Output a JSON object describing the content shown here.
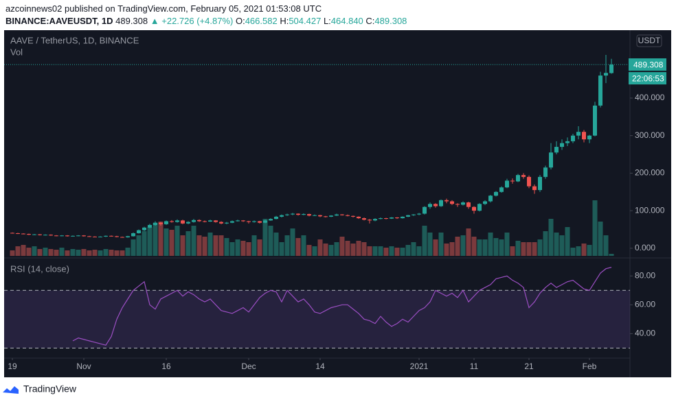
{
  "header": {
    "publisher": "azcoinnews02 published on TradingView.com, February 05, 2021 01:53:08 UTC",
    "symbol": "BINANCE:AAVEUSDT, 1D",
    "last": "489.308",
    "arrow": "▲",
    "change": "+22.726 (+4.87%)",
    "open_label": "O:",
    "open": "466.582",
    "high_label": "H:",
    "high": "504.427",
    "low_label": "L:",
    "low": "464.840",
    "close_label": "C:",
    "close": "489.308"
  },
  "footer": {
    "brand": "TradingView"
  },
  "chart_data": [
    {
      "type": "candlestick",
      "title": "AAVE / TetherUS, 1D, BINANCE",
      "currency": "USDT",
      "categories": [
        "19",
        null,
        null,
        null,
        null,
        null,
        null,
        null,
        null,
        null,
        null,
        null,
        null,
        "Nov",
        null,
        null,
        null,
        null,
        null,
        null,
        null,
        null,
        null,
        null,
        null,
        null,
        null,
        null,
        "16",
        null,
        null,
        null,
        null,
        null,
        null,
        null,
        null,
        null,
        null,
        null,
        null,
        null,
        null,
        "Dec",
        null,
        null,
        null,
        null,
        null,
        null,
        null,
        null,
        null,
        null,
        null,
        null,
        "14",
        null,
        null,
        null,
        null,
        null,
        null,
        null,
        null,
        null,
        null,
        null,
        null,
        null,
        null,
        null,
        null,
        null,
        "2021",
        null,
        null,
        null,
        null,
        null,
        null,
        null,
        null,
        null,
        "11",
        null,
        null,
        null,
        null,
        null,
        null,
        null,
        null,
        null,
        "21",
        null,
        null,
        null,
        null,
        null,
        null,
        null,
        null,
        null,
        null,
        "Feb",
        null,
        null,
        null,
        null
      ],
      "ohlc": [
        [
          41,
          42,
          39,
          40
        ],
        [
          40,
          41,
          38,
          39
        ],
        [
          39,
          40,
          37,
          38
        ],
        [
          38,
          39,
          35,
          36
        ],
        [
          36,
          38,
          35,
          37
        ],
        [
          37,
          38,
          34,
          35
        ],
        [
          35,
          37,
          34,
          36
        ],
        [
          36,
          37,
          33,
          34
        ],
        [
          34,
          35,
          32,
          33
        ],
        [
          33,
          35,
          32,
          34
        ],
        [
          34,
          35,
          31,
          32
        ],
        [
          32,
          34,
          31,
          33
        ],
        [
          33,
          35,
          32,
          34
        ],
        [
          34,
          35,
          31,
          32
        ],
        [
          32,
          33,
          30,
          31
        ],
        [
          31,
          32,
          29,
          30
        ],
        [
          30,
          32,
          29,
          31
        ],
        [
          31,
          34,
          30,
          33
        ],
        [
          33,
          34,
          31,
          32
        ],
        [
          32,
          33,
          29,
          30
        ],
        [
          30,
          31,
          28,
          29
        ],
        [
          29,
          33,
          28,
          32
        ],
        [
          32,
          42,
          31,
          40
        ],
        [
          40,
          50,
          39,
          48
        ],
        [
          48,
          57,
          46,
          55
        ],
        [
          55,
          65,
          53,
          62
        ],
        [
          62,
          72,
          60,
          68
        ],
        [
          68,
          70,
          60,
          64
        ],
        [
          64,
          74,
          62,
          72
        ],
        [
          72,
          75,
          68,
          70
        ],
        [
          70,
          77,
          68,
          74
        ],
        [
          74,
          76,
          64,
          66
        ],
        [
          66,
          72,
          64,
          70
        ],
        [
          70,
          78,
          68,
          75
        ],
        [
          75,
          77,
          70,
          72
        ],
        [
          72,
          74,
          69,
          71
        ],
        [
          71,
          76,
          70,
          74
        ],
        [
          74,
          75,
          68,
          70
        ],
        [
          70,
          72,
          64,
          66
        ],
        [
          66,
          70,
          64,
          68
        ],
        [
          68,
          74,
          67,
          72
        ],
        [
          72,
          76,
          71,
          74
        ],
        [
          74,
          75,
          70,
          72
        ],
        [
          72,
          73,
          66,
          70
        ],
        [
          70,
          74,
          68,
          72
        ],
        [
          72,
          73,
          66,
          68
        ],
        [
          68,
          76,
          67,
          74
        ],
        [
          74,
          80,
          73,
          78
        ],
        [
          78,
          86,
          77,
          84
        ],
        [
          84,
          90,
          82,
          88
        ],
        [
          88,
          92,
          86,
          90
        ],
        [
          90,
          94,
          88,
          92
        ],
        [
          92,
          93,
          87,
          89
        ],
        [
          89,
          93,
          88,
          91
        ],
        [
          91,
          92,
          85,
          87
        ],
        [
          87,
          90,
          86,
          88
        ],
        [
          88,
          89,
          83,
          85
        ],
        [
          85,
          86,
          82,
          84
        ],
        [
          84,
          88,
          83,
          87
        ],
        [
          87,
          92,
          86,
          90
        ],
        [
          90,
          91,
          87,
          88
        ],
        [
          88,
          90,
          85,
          86
        ],
        [
          86,
          87,
          82,
          84
        ],
        [
          84,
          85,
          78,
          80
        ],
        [
          80,
          82,
          74,
          76
        ],
        [
          76,
          78,
          66,
          74
        ],
        [
          74,
          80,
          72,
          78
        ],
        [
          78,
          82,
          77,
          80
        ],
        [
          80,
          81,
          77,
          79
        ],
        [
          79,
          83,
          78,
          82
        ],
        [
          82,
          83,
          78,
          80
        ],
        [
          80,
          85,
          79,
          84
        ],
        [
          84,
          89,
          83,
          88
        ],
        [
          88,
          91,
          86,
          90
        ],
        [
          90,
          94,
          88,
          92
        ],
        [
          92,
          112,
          90,
          110
        ],
        [
          110,
          122,
          105,
          118
        ],
        [
          118,
          120,
          108,
          112
        ],
        [
          112,
          130,
          110,
          128
        ],
        [
          128,
          132,
          120,
          125
        ],
        [
          125,
          128,
          115,
          118
        ],
        [
          118,
          120,
          110,
          116
        ],
        [
          116,
          125,
          114,
          122
        ],
        [
          122,
          124,
          105,
          110
        ],
        [
          110,
          112,
          92,
          100
        ],
        [
          100,
          120,
          98,
          118
        ],
        [
          118,
          128,
          115,
          125
        ],
        [
          125,
          142,
          122,
          140
        ],
        [
          140,
          152,
          138,
          150
        ],
        [
          150,
          165,
          148,
          162
        ],
        [
          162,
          185,
          160,
          180
        ],
        [
          180,
          186,
          172,
          178
        ],
        [
          178,
          198,
          176,
          195
        ],
        [
          195,
          200,
          185,
          190
        ],
        [
          190,
          194,
          160,
          165
        ],
        [
          165,
          170,
          145,
          155
        ],
        [
          155,
          195,
          150,
          190
        ],
        [
          190,
          220,
          185,
          215
        ],
        [
          215,
          280,
          210,
          255
        ],
        [
          255,
          285,
          250,
          270
        ],
        [
          270,
          290,
          262,
          280
        ],
        [
          280,
          295,
          272,
          285
        ],
        [
          285,
          305,
          280,
          300
        ],
        [
          300,
          325,
          290,
          310
        ],
        [
          310,
          315,
          282,
          290
        ],
        [
          290,
          302,
          280,
          300
        ],
        [
          300,
          390,
          298,
          380
        ],
        [
          380,
          470,
          375,
          460
        ],
        [
          460,
          515,
          440,
          467
        ],
        [
          466.582,
          504.427,
          464.84,
          489.308
        ]
      ],
      "volume": {
        "name": "Vol",
        "values": [
          8,
          14,
          16,
          12,
          14,
          10,
          12,
          10,
          9,
          12,
          8,
          10,
          9,
          10,
          8,
          9,
          8,
          10,
          9,
          8,
          8,
          12,
          24,
          30,
          36,
          42,
          48,
          50,
          40,
          38,
          44,
          30,
          36,
          44,
          30,
          28,
          34,
          30,
          30,
          26,
          20,
          24,
          22,
          20,
          30,
          24,
          54,
          44,
          34,
          20,
          30,
          40,
          26,
          30,
          16,
          14,
          24,
          18,
          16,
          20,
          28,
          22,
          18,
          22,
          20,
          14,
          14,
          14,
          12,
          14,
          12,
          12,
          16,
          20,
          14,
          44,
          34,
          24,
          34,
          18,
          20,
          28,
          30,
          40,
          28,
          24,
          24,
          34,
          26,
          24,
          34,
          14,
          22,
          20,
          20,
          20,
          24,
          36,
          54,
          34,
          30,
          42,
          12,
          14,
          18,
          16,
          81,
          50,
          30,
          3
        ]
      },
      "up_color": "#26a69a",
      "down_color": "#ef5350",
      "volume_up_color": "#1e5c58",
      "volume_down_color": "#7b3a3d",
      "last_price": 489.308,
      "countdown": "22:06:53",
      "ylim": [
        -24,
        579
      ],
      "yticks": [
        {
          "value": 0,
          "label": "0.000"
        },
        {
          "value": 100,
          "label": "100.000"
        },
        {
          "value": 200,
          "label": "200.000"
        },
        {
          "value": 300,
          "label": "300.000"
        },
        {
          "value": 400,
          "label": "400.000"
        }
      ]
    },
    {
      "type": "line",
      "title": "RSI (14, close)",
      "series": [
        {
          "name": "RSI",
          "color": "#9c4fc4",
          "values": [
            null,
            null,
            null,
            null,
            null,
            null,
            null,
            null,
            null,
            null,
            null,
            35,
            37,
            36,
            35,
            34,
            33,
            32,
            38,
            50,
            58,
            64,
            70,
            73,
            76,
            60,
            57,
            64,
            66,
            68,
            70,
            66,
            69,
            67,
            64,
            62,
            64,
            60,
            56,
            55,
            54,
            56,
            58,
            55,
            60,
            65,
            68,
            70,
            69,
            62,
            70,
            66,
            62,
            64,
            60,
            55,
            54,
            56,
            58,
            59,
            60,
            60,
            57,
            54,
            50,
            49,
            47,
            52,
            48,
            45,
            47,
            50,
            48,
            52,
            56,
            58,
            62,
            70,
            68,
            66,
            68,
            65,
            70,
            62,
            66,
            70,
            72,
            74,
            78,
            79,
            80,
            77,
            75,
            72,
            58,
            62,
            68,
            72,
            75,
            72,
            74,
            76,
            77,
            74,
            71,
            70,
            76,
            82,
            85,
            86
          ]
        }
      ],
      "bands": [
        30,
        70
      ],
      "band_color": "rgba(126,87,194,0.18)",
      "ylim": [
        24,
        92
      ],
      "yticks": [
        {
          "value": 40,
          "label": "40.00"
        },
        {
          "value": 60,
          "label": "60.00"
        },
        {
          "value": 80,
          "label": "80.00"
        }
      ]
    }
  ]
}
